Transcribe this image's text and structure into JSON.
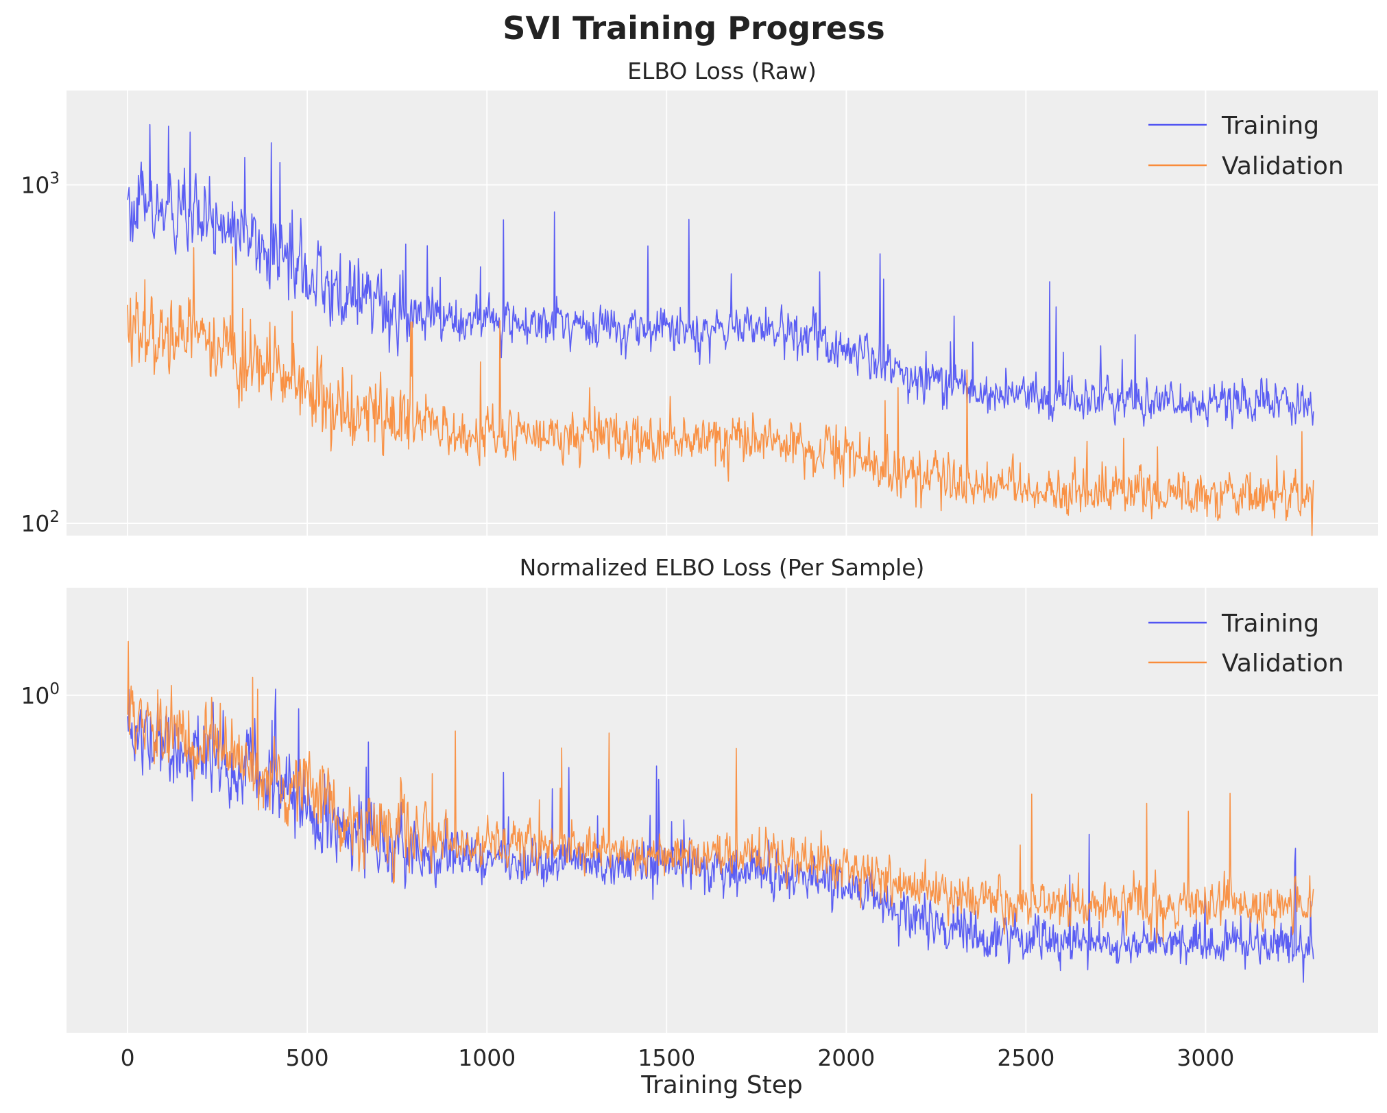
{
  "figure_title": "SVI Training Progress",
  "colors": {
    "training": "#5154f2",
    "validation": "#f98b3a",
    "panel_bg": "#eeeeee",
    "grid": "#ffffff"
  },
  "chart_data": [
    {
      "type": "line",
      "title": "ELBO Loss (Raw)",
      "xlabel": "",
      "ylabel": "",
      "yscale": "log",
      "xlim": [
        -170,
        3480
      ],
      "ylim": [
        92,
        1900
      ],
      "xticks": [
        0,
        500,
        1000,
        1500,
        2000,
        2500,
        3000
      ],
      "xtick_labels": [
        "",
        "",
        "",
        "",
        "",
        "",
        ""
      ],
      "yticks": [
        100,
        1000
      ],
      "ytick_labels": [
        {
          "base": "10",
          "exp": "2"
        },
        {
          "base": "10",
          "exp": "3"
        }
      ],
      "grid": true,
      "legend_position": "upper right",
      "series": [
        {
          "name": "Training",
          "color": "#5154f2",
          "noise": 0.11,
          "spike_rate": 0.012,
          "x": [
            0,
            50,
            100,
            200,
            300,
            400,
            500,
            600,
            700,
            800,
            900,
            1000,
            1100,
            1200,
            1300,
            1400,
            1500,
            1600,
            1700,
            1800,
            1900,
            2000,
            2100,
            2200,
            2300,
            2400,
            2500,
            2600,
            2700,
            2800,
            2900,
            3000,
            3100,
            3200,
            3300
          ],
          "values": [
            880,
            850,
            820,
            760,
            730,
            650,
            560,
            470,
            440,
            410,
            400,
            395,
            395,
            390,
            385,
            380,
            378,
            375,
            380,
            375,
            355,
            330,
            300,
            275,
            260,
            245,
            240,
            235,
            232,
            230,
            230,
            230,
            228,
            228,
            228
          ]
        },
        {
          "name": "Validation",
          "color": "#f98b3a",
          "noise": 0.12,
          "spike_rate": 0.012,
          "x": [
            0,
            50,
            100,
            200,
            300,
            400,
            500,
            600,
            700,
            800,
            900,
            1000,
            1100,
            1200,
            1300,
            1400,
            1500,
            1600,
            1700,
            1800,
            1900,
            2000,
            2100,
            2200,
            2300,
            2400,
            2500,
            2600,
            2700,
            2800,
            2900,
            3000,
            3100,
            3200,
            3300
          ],
          "values": [
            400,
            380,
            370,
            345,
            320,
            290,
            250,
            220,
            205,
            195,
            188,
            185,
            183,
            182,
            180,
            178,
            177,
            176,
            178,
            175,
            168,
            158,
            146,
            137,
            132,
            128,
            126,
            125,
            124,
            123,
            123,
            123,
            122,
            122,
            122
          ]
        }
      ]
    },
    {
      "type": "line",
      "title": "Normalized ELBO Loss (Per Sample)",
      "xlabel": "Training Step",
      "ylabel": "",
      "yscale": "log",
      "xlim": [
        -170,
        3480
      ],
      "ylim": [
        0.11,
        2.02
      ],
      "xticks": [
        0,
        500,
        1000,
        1500,
        2000,
        2500,
        3000
      ],
      "xtick_labels": [
        "0",
        "500",
        "1000",
        "1500",
        "2000",
        "2500",
        "3000"
      ],
      "yticks": [
        1
      ],
      "ytick_labels": [
        {
          "base": "10",
          "exp": "0"
        }
      ],
      "grid": true,
      "legend_position": "upper right",
      "series": [
        {
          "name": "Training",
          "color": "#5154f2",
          "noise": 0.11,
          "spike_rate": 0.012,
          "x": [
            0,
            50,
            100,
            200,
            300,
            400,
            500,
            600,
            700,
            800,
            900,
            1000,
            1100,
            1200,
            1300,
            1400,
            1500,
            1600,
            1700,
            1800,
            1900,
            2000,
            2100,
            2200,
            2300,
            2400,
            2500,
            2600,
            2700,
            2800,
            2900,
            3000,
            3100,
            3200,
            3300
          ],
          "values": [
            0.8,
            0.76,
            0.73,
            0.68,
            0.64,
            0.56,
            0.48,
            0.4,
            0.375,
            0.355,
            0.345,
            0.34,
            0.338,
            0.335,
            0.33,
            0.328,
            0.326,
            0.324,
            0.325,
            0.322,
            0.305,
            0.285,
            0.255,
            0.23,
            0.215,
            0.205,
            0.2,
            0.197,
            0.195,
            0.195,
            0.195,
            0.195,
            0.194,
            0.194,
            0.194
          ]
        },
        {
          "name": "Validation",
          "color": "#f98b3a",
          "noise": 0.11,
          "spike_rate": 0.012,
          "x": [
            0,
            50,
            100,
            200,
            300,
            400,
            500,
            600,
            700,
            800,
            900,
            1000,
            1100,
            1200,
            1300,
            1400,
            1500,
            1600,
            1700,
            1800,
            1900,
            2000,
            2100,
            2200,
            2300,
            2400,
            2500,
            2600,
            2700,
            2800,
            2900,
            3000,
            3100,
            3200,
            3300
          ],
          "values": [
            0.85,
            0.82,
            0.78,
            0.72,
            0.68,
            0.6,
            0.53,
            0.46,
            0.42,
            0.4,
            0.385,
            0.375,
            0.372,
            0.368,
            0.362,
            0.358,
            0.355,
            0.352,
            0.356,
            0.35,
            0.34,
            0.32,
            0.3,
            0.282,
            0.27,
            0.262,
            0.258,
            0.256,
            0.255,
            0.255,
            0.254,
            0.254,
            0.253,
            0.253,
            0.253
          ]
        }
      ]
    }
  ]
}
